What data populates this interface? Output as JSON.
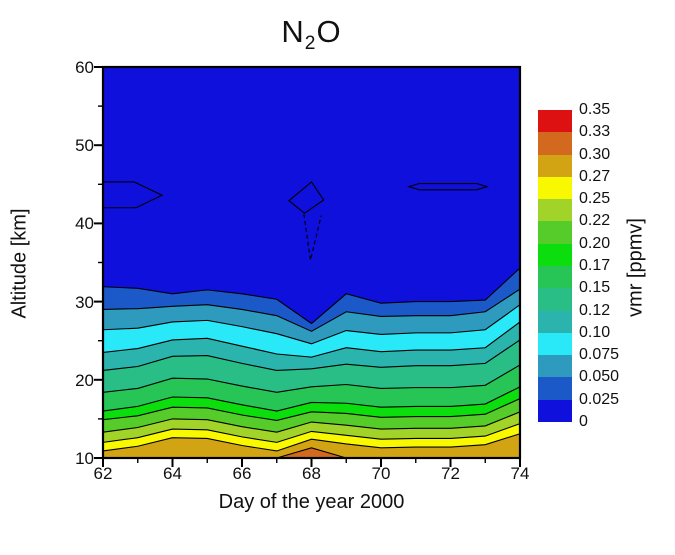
{
  "figure": {
    "background": "#ffffff"
  },
  "chart_data": {
    "type": "filled-contour",
    "title": "N2O",
    "title_parts": {
      "base": "N",
      "sub": "2",
      "end": "O"
    },
    "xlabel": "Day of the year 2000",
    "ylabel": "Altitude [km]",
    "colorbar_label": "vmr [ppmv]",
    "xlim": [
      62,
      74
    ],
    "ylim": [
      10,
      60
    ],
    "x_ticks": [
      62,
      64,
      66,
      68,
      70,
      72,
      74
    ],
    "x_minor_ticks": [
      63,
      65,
      67,
      69,
      71,
      73
    ],
    "y_ticks": [
      10,
      20,
      30,
      40,
      50,
      60
    ],
    "y_minor_ticks": [
      15,
      25,
      35,
      45,
      55
    ],
    "levels": [
      0,
      0.025,
      0.05,
      0.075,
      0.1,
      0.12,
      0.15,
      0.17,
      0.2,
      0.22,
      0.25,
      0.27,
      0.3,
      0.33,
      0.35
    ],
    "colorbar_labels_top_down": [
      "0.35",
      "0.33",
      "0.30",
      "0.27",
      "0.25",
      "0.22",
      "0.20",
      "0.17",
      "0.15",
      "0.12",
      "0.10",
      "0.075",
      "0.050",
      "0.025",
      "0"
    ],
    "band_colors_low_to_high": [
      "#0f10dc",
      "#1b59c9",
      "#2d9abe",
      "#29e8f8",
      "#2ab4ad",
      "#28be85",
      "#26c555",
      "#0cdd0c",
      "#55cc2a",
      "#a2d328",
      "#f8f800",
      "#d2a414",
      "#d2691e",
      "#dd1111"
    ],
    "contour_line_color": "#000000",
    "days": [
      62,
      63,
      64,
      65,
      66,
      67,
      68,
      69,
      70,
      71,
      72,
      73,
      74
    ],
    "boundaries": [
      {
        "level": 0.025,
        "altitudes": [
          31.9,
          31.7,
          31.0,
          31.5,
          31.0,
          30.3,
          27.2,
          31.0,
          29.8,
          30.0,
          30.0,
          30.2,
          34.3
        ]
      },
      {
        "level": 0.05,
        "altitudes": [
          29.0,
          29.1,
          29.4,
          29.6,
          29.0,
          28.2,
          26.2,
          28.7,
          28.1,
          28.2,
          28.2,
          28.7,
          31.6
        ]
      },
      {
        "level": 0.075,
        "altitudes": [
          26.4,
          26.6,
          27.4,
          27.6,
          26.8,
          25.9,
          24.6,
          26.3,
          25.8,
          26.0,
          26.0,
          26.4,
          29.6
        ]
      },
      {
        "level": 0.1,
        "altitudes": [
          23.5,
          24.0,
          25.1,
          25.3,
          24.3,
          23.3,
          22.9,
          24.1,
          23.6,
          23.8,
          23.8,
          24.1,
          27.4
        ]
      },
      {
        "level": 0.12,
        "altitudes": [
          21.2,
          21.7,
          23.0,
          23.1,
          22.1,
          21.2,
          21.4,
          22.0,
          21.6,
          21.8,
          21.8,
          22.1,
          25.1
        ]
      },
      {
        "level": 0.15,
        "altitudes": [
          18.4,
          18.9,
          20.2,
          20.1,
          19.2,
          18.4,
          19.1,
          19.4,
          18.9,
          19.0,
          19.0,
          19.3,
          21.9
        ]
      },
      {
        "level": 0.17,
        "altitudes": [
          16.0,
          16.6,
          17.8,
          17.7,
          16.8,
          16.0,
          17.1,
          17.0,
          16.5,
          16.6,
          16.6,
          16.9,
          19.1
        ]
      },
      {
        "level": 0.2,
        "altitudes": [
          14.9,
          15.4,
          16.5,
          16.4,
          15.5,
          14.8,
          15.9,
          15.7,
          15.2,
          15.3,
          15.3,
          15.6,
          17.6
        ]
      },
      {
        "level": 0.22,
        "altitudes": [
          13.3,
          13.9,
          15.0,
          14.9,
          14.0,
          13.3,
          14.6,
          14.2,
          13.7,
          13.8,
          13.8,
          14.1,
          15.9
        ]
      },
      {
        "level": 0.25,
        "altitudes": [
          12.0,
          12.6,
          13.7,
          13.6,
          12.7,
          12.0,
          13.4,
          12.9,
          12.4,
          12.5,
          12.5,
          12.8,
          14.4
        ]
      },
      {
        "level": 0.27,
        "altitudes": [
          10.9,
          11.5,
          12.6,
          12.5,
          11.6,
          10.9,
          12.4,
          11.8,
          11.3,
          11.4,
          11.4,
          11.7,
          13.1
        ]
      },
      {
        "level": 0.3,
        "altitudes": [
          10.0,
          10.0,
          10.0,
          10.0,
          10.0,
          10.0,
          11.3,
          10.0,
          10.0,
          10.0,
          10.0,
          10.0,
          10.0
        ]
      }
    ],
    "features": [
      {
        "name": "closed-contour-left-pennant",
        "shape": "polyline",
        "dashed": false,
        "points": [
          [
            62,
            45.3
          ],
          [
            62.9,
            45.3
          ],
          [
            63.7,
            43.6
          ],
          [
            62.95,
            42.0
          ],
          [
            62,
            42.0
          ]
        ]
      },
      {
        "name": "closed-contour-kite-day68",
        "shape": "polygon",
        "dashed": false,
        "points": [
          [
            68.0,
            45.3
          ],
          [
            68.35,
            43.0
          ],
          [
            67.8,
            41.3
          ],
          [
            67.35,
            42.9
          ]
        ]
      },
      {
        "name": "dashed-contour-tail-day68",
        "shape": "polyline",
        "dashed": true,
        "points": [
          [
            67.78,
            41.2
          ],
          [
            67.97,
            35.3
          ],
          [
            68.28,
            41.0
          ]
        ]
      },
      {
        "name": "closed-contour-lens-day71-73",
        "shape": "polygon",
        "dashed": false,
        "points": [
          [
            70.8,
            44.7
          ],
          [
            71.1,
            45.1
          ],
          [
            72.75,
            45.1
          ],
          [
            73.05,
            44.7
          ],
          [
            72.75,
            44.3
          ],
          [
            71.1,
            44.3
          ]
        ]
      }
    ]
  }
}
